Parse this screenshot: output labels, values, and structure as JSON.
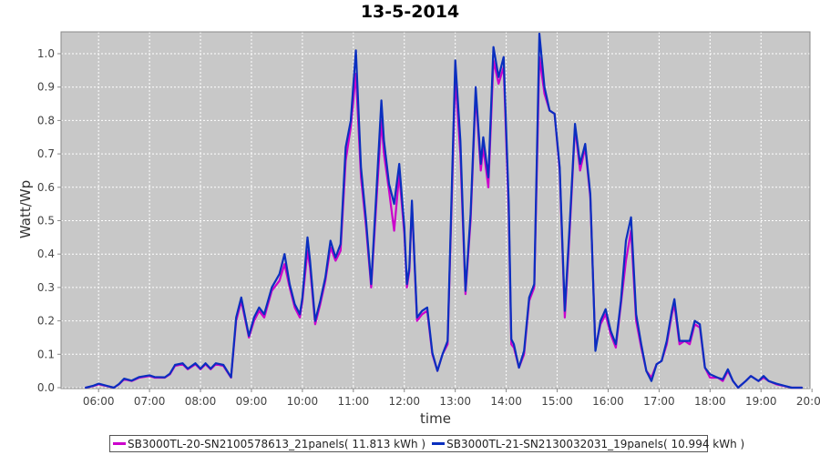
{
  "chart_data": {
    "type": "line",
    "title": "13-5-2014",
    "xlabel": "time",
    "ylabel": "Watt/Wp",
    "xlim": [
      5.5,
      20.3
    ],
    "ylim": [
      0,
      1.06
    ],
    "x_ticks": [
      "06:00",
      "07:00",
      "08:00",
      "09:00",
      "10:00",
      "11:00",
      "12:00",
      "13:00",
      "14:00",
      "15:00",
      "16:00",
      "17:00",
      "18:00",
      "19:00",
      "20:00"
    ],
    "y_ticks": [
      "0.0",
      "0.1",
      "0.2",
      "0.3",
      "0.4",
      "0.5",
      "0.6",
      "0.7",
      "0.8",
      "0.9",
      "1.0"
    ],
    "grid": true,
    "legend_position": "bottom",
    "series": [
      {
        "name": "SB3000TL-20-SN2100578613_21panels( 11.813 kWh )",
        "color": "#cc00cc",
        "points": [
          [
            5.75,
            0.0
          ],
          [
            5.9,
            0.005
          ],
          [
            6.0,
            0.01
          ],
          [
            6.15,
            0.005
          ],
          [
            6.3,
            0.0
          ],
          [
            6.4,
            0.01
          ],
          [
            6.5,
            0.025
          ],
          [
            6.65,
            0.02
          ],
          [
            6.8,
            0.03
          ],
          [
            7.0,
            0.035
          ],
          [
            7.1,
            0.03
          ],
          [
            7.3,
            0.03
          ],
          [
            7.4,
            0.04
          ],
          [
            7.5,
            0.065
          ],
          [
            7.65,
            0.07
          ],
          [
            7.75,
            0.055
          ],
          [
            7.9,
            0.07
          ],
          [
            8.0,
            0.055
          ],
          [
            8.1,
            0.07
          ],
          [
            8.2,
            0.055
          ],
          [
            8.3,
            0.07
          ],
          [
            8.45,
            0.065
          ],
          [
            8.6,
            0.03
          ],
          [
            8.7,
            0.2
          ],
          [
            8.8,
            0.26
          ],
          [
            8.95,
            0.15
          ],
          [
            9.05,
            0.2
          ],
          [
            9.15,
            0.23
          ],
          [
            9.25,
            0.21
          ],
          [
            9.4,
            0.29
          ],
          [
            9.55,
            0.32
          ],
          [
            9.65,
            0.37
          ],
          [
            9.75,
            0.3
          ],
          [
            9.85,
            0.24
          ],
          [
            9.95,
            0.21
          ],
          [
            10.0,
            0.26
          ],
          [
            10.1,
            0.41
          ],
          [
            10.15,
            0.36
          ],
          [
            10.25,
            0.19
          ],
          [
            10.35,
            0.25
          ],
          [
            10.45,
            0.32
          ],
          [
            10.55,
            0.42
          ],
          [
            10.65,
            0.38
          ],
          [
            10.75,
            0.41
          ],
          [
            10.85,
            0.68
          ],
          [
            10.95,
            0.78
          ],
          [
            11.05,
            0.94
          ],
          [
            11.15,
            0.63
          ],
          [
            11.25,
            0.48
          ],
          [
            11.35,
            0.3
          ],
          [
            11.45,
            0.55
          ],
          [
            11.55,
            0.8
          ],
          [
            11.6,
            0.7
          ],
          [
            11.7,
            0.59
          ],
          [
            11.8,
            0.47
          ],
          [
            11.9,
            0.64
          ],
          [
            12.0,
            0.46
          ],
          [
            12.05,
            0.3
          ],
          [
            12.1,
            0.35
          ],
          [
            12.15,
            0.55
          ],
          [
            12.25,
            0.2
          ],
          [
            12.35,
            0.22
          ],
          [
            12.45,
            0.23
          ],
          [
            12.55,
            0.1
          ],
          [
            12.65,
            0.05
          ],
          [
            12.75,
            0.1
          ],
          [
            12.85,
            0.13
          ],
          [
            12.9,
            0.4
          ],
          [
            13.0,
            0.93
          ],
          [
            13.1,
            0.7
          ],
          [
            13.2,
            0.28
          ],
          [
            13.3,
            0.5
          ],
          [
            13.4,
            0.88
          ],
          [
            13.5,
            0.65
          ],
          [
            13.55,
            0.72
          ],
          [
            13.65,
            0.6
          ],
          [
            13.75,
            0.98
          ],
          [
            13.85,
            0.91
          ],
          [
            13.95,
            0.96
          ],
          [
            14.05,
            0.52
          ],
          [
            14.1,
            0.13
          ],
          [
            14.15,
            0.12
          ],
          [
            14.25,
            0.06
          ],
          [
            14.35,
            0.1
          ],
          [
            14.45,
            0.26
          ],
          [
            14.55,
            0.3
          ],
          [
            14.65,
            0.99
          ],
          [
            14.75,
            0.88
          ],
          [
            14.85,
            0.83
          ],
          [
            14.95,
            0.82
          ],
          [
            15.05,
            0.65
          ],
          [
            15.15,
            0.21
          ],
          [
            15.25,
            0.48
          ],
          [
            15.35,
            0.78
          ],
          [
            15.45,
            0.65
          ],
          [
            15.55,
            0.72
          ],
          [
            15.65,
            0.57
          ],
          [
            15.75,
            0.12
          ],
          [
            15.85,
            0.19
          ],
          [
            15.95,
            0.22
          ],
          [
            16.05,
            0.16
          ],
          [
            16.15,
            0.12
          ],
          [
            16.25,
            0.25
          ],
          [
            16.35,
            0.38
          ],
          [
            16.45,
            0.47
          ],
          [
            16.55,
            0.2
          ],
          [
            16.65,
            0.12
          ],
          [
            16.75,
            0.05
          ],
          [
            16.85,
            0.03
          ],
          [
            16.95,
            0.07
          ],
          [
            17.05,
            0.08
          ],
          [
            17.15,
            0.13
          ],
          [
            17.25,
            0.22
          ],
          [
            17.3,
            0.25
          ],
          [
            17.4,
            0.13
          ],
          [
            17.5,
            0.14
          ],
          [
            17.6,
            0.13
          ],
          [
            17.7,
            0.19
          ],
          [
            17.8,
            0.18
          ],
          [
            17.9,
            0.06
          ],
          [
            18.0,
            0.03
          ],
          [
            18.15,
            0.03
          ],
          [
            18.25,
            0.02
          ],
          [
            18.35,
            0.05
          ],
          [
            18.45,
            0.02
          ],
          [
            18.55,
            0.0
          ],
          [
            18.7,
            0.02
          ],
          [
            18.8,
            0.035
          ],
          [
            18.95,
            0.02
          ],
          [
            19.05,
            0.03
          ],
          [
            19.15,
            0.02
          ],
          [
            19.3,
            0.01
          ],
          [
            19.45,
            0.005
          ],
          [
            19.6,
            0.0
          ],
          [
            19.8,
            0.0
          ]
        ]
      },
      {
        "name": "SB3000TL-21-SN2130032031_19panels( 10.994 kWh )",
        "color": "#0a2fbf",
        "points": [
          [
            5.75,
            0.0
          ],
          [
            5.9,
            0.006
          ],
          [
            6.0,
            0.012
          ],
          [
            6.15,
            0.006
          ],
          [
            6.3,
            0.0
          ],
          [
            6.4,
            0.011
          ],
          [
            6.5,
            0.027
          ],
          [
            6.65,
            0.021
          ],
          [
            6.8,
            0.032
          ],
          [
            7.0,
            0.037
          ],
          [
            7.1,
            0.032
          ],
          [
            7.3,
            0.031
          ],
          [
            7.4,
            0.042
          ],
          [
            7.5,
            0.068
          ],
          [
            7.65,
            0.073
          ],
          [
            7.75,
            0.057
          ],
          [
            7.9,
            0.073
          ],
          [
            8.0,
            0.057
          ],
          [
            8.1,
            0.073
          ],
          [
            8.2,
            0.057
          ],
          [
            8.3,
            0.073
          ],
          [
            8.45,
            0.068
          ],
          [
            8.6,
            0.031
          ],
          [
            8.7,
            0.21
          ],
          [
            8.8,
            0.27
          ],
          [
            8.95,
            0.155
          ],
          [
            9.05,
            0.21
          ],
          [
            9.15,
            0.24
          ],
          [
            9.25,
            0.22
          ],
          [
            9.4,
            0.3
          ],
          [
            9.55,
            0.34
          ],
          [
            9.65,
            0.4
          ],
          [
            9.75,
            0.31
          ],
          [
            9.85,
            0.25
          ],
          [
            9.95,
            0.22
          ],
          [
            10.0,
            0.27
          ],
          [
            10.1,
            0.45
          ],
          [
            10.15,
            0.38
          ],
          [
            10.25,
            0.2
          ],
          [
            10.35,
            0.26
          ],
          [
            10.45,
            0.33
          ],
          [
            10.55,
            0.44
          ],
          [
            10.65,
            0.39
          ],
          [
            10.75,
            0.43
          ],
          [
            10.85,
            0.72
          ],
          [
            10.95,
            0.8
          ],
          [
            11.05,
            1.01
          ],
          [
            11.15,
            0.66
          ],
          [
            11.25,
            0.5
          ],
          [
            11.35,
            0.31
          ],
          [
            11.45,
            0.58
          ],
          [
            11.55,
            0.86
          ],
          [
            11.6,
            0.74
          ],
          [
            11.7,
            0.61
          ],
          [
            11.8,
            0.55
          ],
          [
            11.9,
            0.67
          ],
          [
            12.0,
            0.48
          ],
          [
            12.05,
            0.31
          ],
          [
            12.1,
            0.36
          ],
          [
            12.15,
            0.56
          ],
          [
            12.25,
            0.21
          ],
          [
            12.35,
            0.23
          ],
          [
            12.45,
            0.24
          ],
          [
            12.55,
            0.105
          ],
          [
            12.65,
            0.05
          ],
          [
            12.75,
            0.1
          ],
          [
            12.85,
            0.14
          ],
          [
            12.9,
            0.42
          ],
          [
            13.0,
            0.98
          ],
          [
            13.1,
            0.74
          ],
          [
            13.2,
            0.29
          ],
          [
            13.3,
            0.52
          ],
          [
            13.4,
            0.9
          ],
          [
            13.5,
            0.67
          ],
          [
            13.55,
            0.75
          ],
          [
            13.65,
            0.63
          ],
          [
            13.75,
            1.02
          ],
          [
            13.85,
            0.93
          ],
          [
            13.95,
            0.99
          ],
          [
            14.05,
            0.55
          ],
          [
            14.1,
            0.145
          ],
          [
            14.15,
            0.13
          ],
          [
            14.25,
            0.06
          ],
          [
            14.35,
            0.11
          ],
          [
            14.45,
            0.27
          ],
          [
            14.55,
            0.31
          ],
          [
            14.65,
            1.06
          ],
          [
            14.75,
            0.9
          ],
          [
            14.85,
            0.83
          ],
          [
            14.95,
            0.82
          ],
          [
            15.05,
            0.66
          ],
          [
            15.15,
            0.23
          ],
          [
            15.25,
            0.5
          ],
          [
            15.35,
            0.79
          ],
          [
            15.45,
            0.67
          ],
          [
            15.55,
            0.73
          ],
          [
            15.65,
            0.58
          ],
          [
            15.75,
            0.11
          ],
          [
            15.85,
            0.2
          ],
          [
            15.95,
            0.235
          ],
          [
            16.05,
            0.17
          ],
          [
            16.15,
            0.13
          ],
          [
            16.25,
            0.26
          ],
          [
            16.35,
            0.44
          ],
          [
            16.45,
            0.51
          ],
          [
            16.55,
            0.22
          ],
          [
            16.65,
            0.13
          ],
          [
            16.75,
            0.05
          ],
          [
            16.85,
            0.02
          ],
          [
            16.95,
            0.07
          ],
          [
            17.05,
            0.08
          ],
          [
            17.15,
            0.14
          ],
          [
            17.25,
            0.23
          ],
          [
            17.3,
            0.265
          ],
          [
            17.4,
            0.14
          ],
          [
            17.5,
            0.14
          ],
          [
            17.6,
            0.14
          ],
          [
            17.7,
            0.2
          ],
          [
            17.8,
            0.19
          ],
          [
            17.9,
            0.06
          ],
          [
            18.0,
            0.04
          ],
          [
            18.15,
            0.03
          ],
          [
            18.25,
            0.025
          ],
          [
            18.35,
            0.055
          ],
          [
            18.45,
            0.02
          ],
          [
            18.55,
            0.0
          ],
          [
            18.7,
            0.02
          ],
          [
            18.8,
            0.035
          ],
          [
            18.95,
            0.02
          ],
          [
            19.05,
            0.035
          ],
          [
            19.15,
            0.02
          ],
          [
            19.3,
            0.012
          ],
          [
            19.45,
            0.006
          ],
          [
            19.6,
            0.0
          ],
          [
            19.8,
            0.0
          ]
        ]
      }
    ]
  }
}
